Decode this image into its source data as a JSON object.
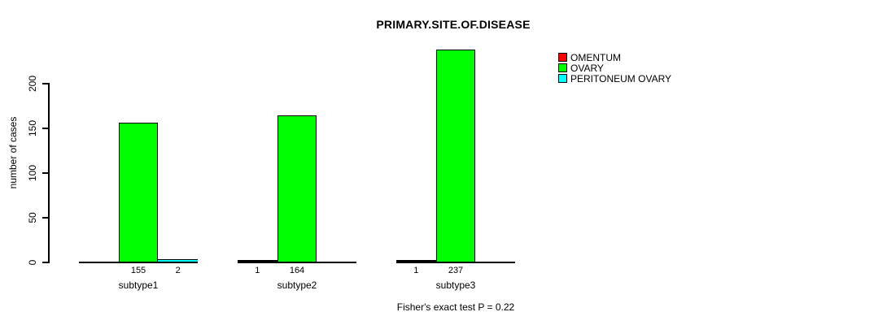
{
  "chart_data": {
    "type": "bar",
    "title": "PRIMARY.SITE.OF.DISEASE",
    "ylabel": "number of cases",
    "xlabel": "",
    "annotation": "Fisher's exact test P = 0.22",
    "categories": [
      "subtype1",
      "subtype2",
      "subtype3"
    ],
    "series": [
      {
        "name": "OMENTUM",
        "color": "#FF0000",
        "values": [
          0,
          1,
          1
        ]
      },
      {
        "name": "OVARY",
        "color": "#00FF00",
        "values": [
          155,
          164,
          237
        ]
      },
      {
        "name": "PERITONEUM OVARY",
        "color": "#00FFFF",
        "values": [
          2,
          0,
          0
        ]
      }
    ],
    "yticks": [
      0,
      50,
      100,
      150,
      200
    ],
    "ylim": [
      0,
      240
    ],
    "grid": false,
    "legend_position": "right",
    "bar_value_labels": "shown under each bar when value > 0",
    "background_color": "#FFFFFF",
    "axis_color": "#000000"
  }
}
